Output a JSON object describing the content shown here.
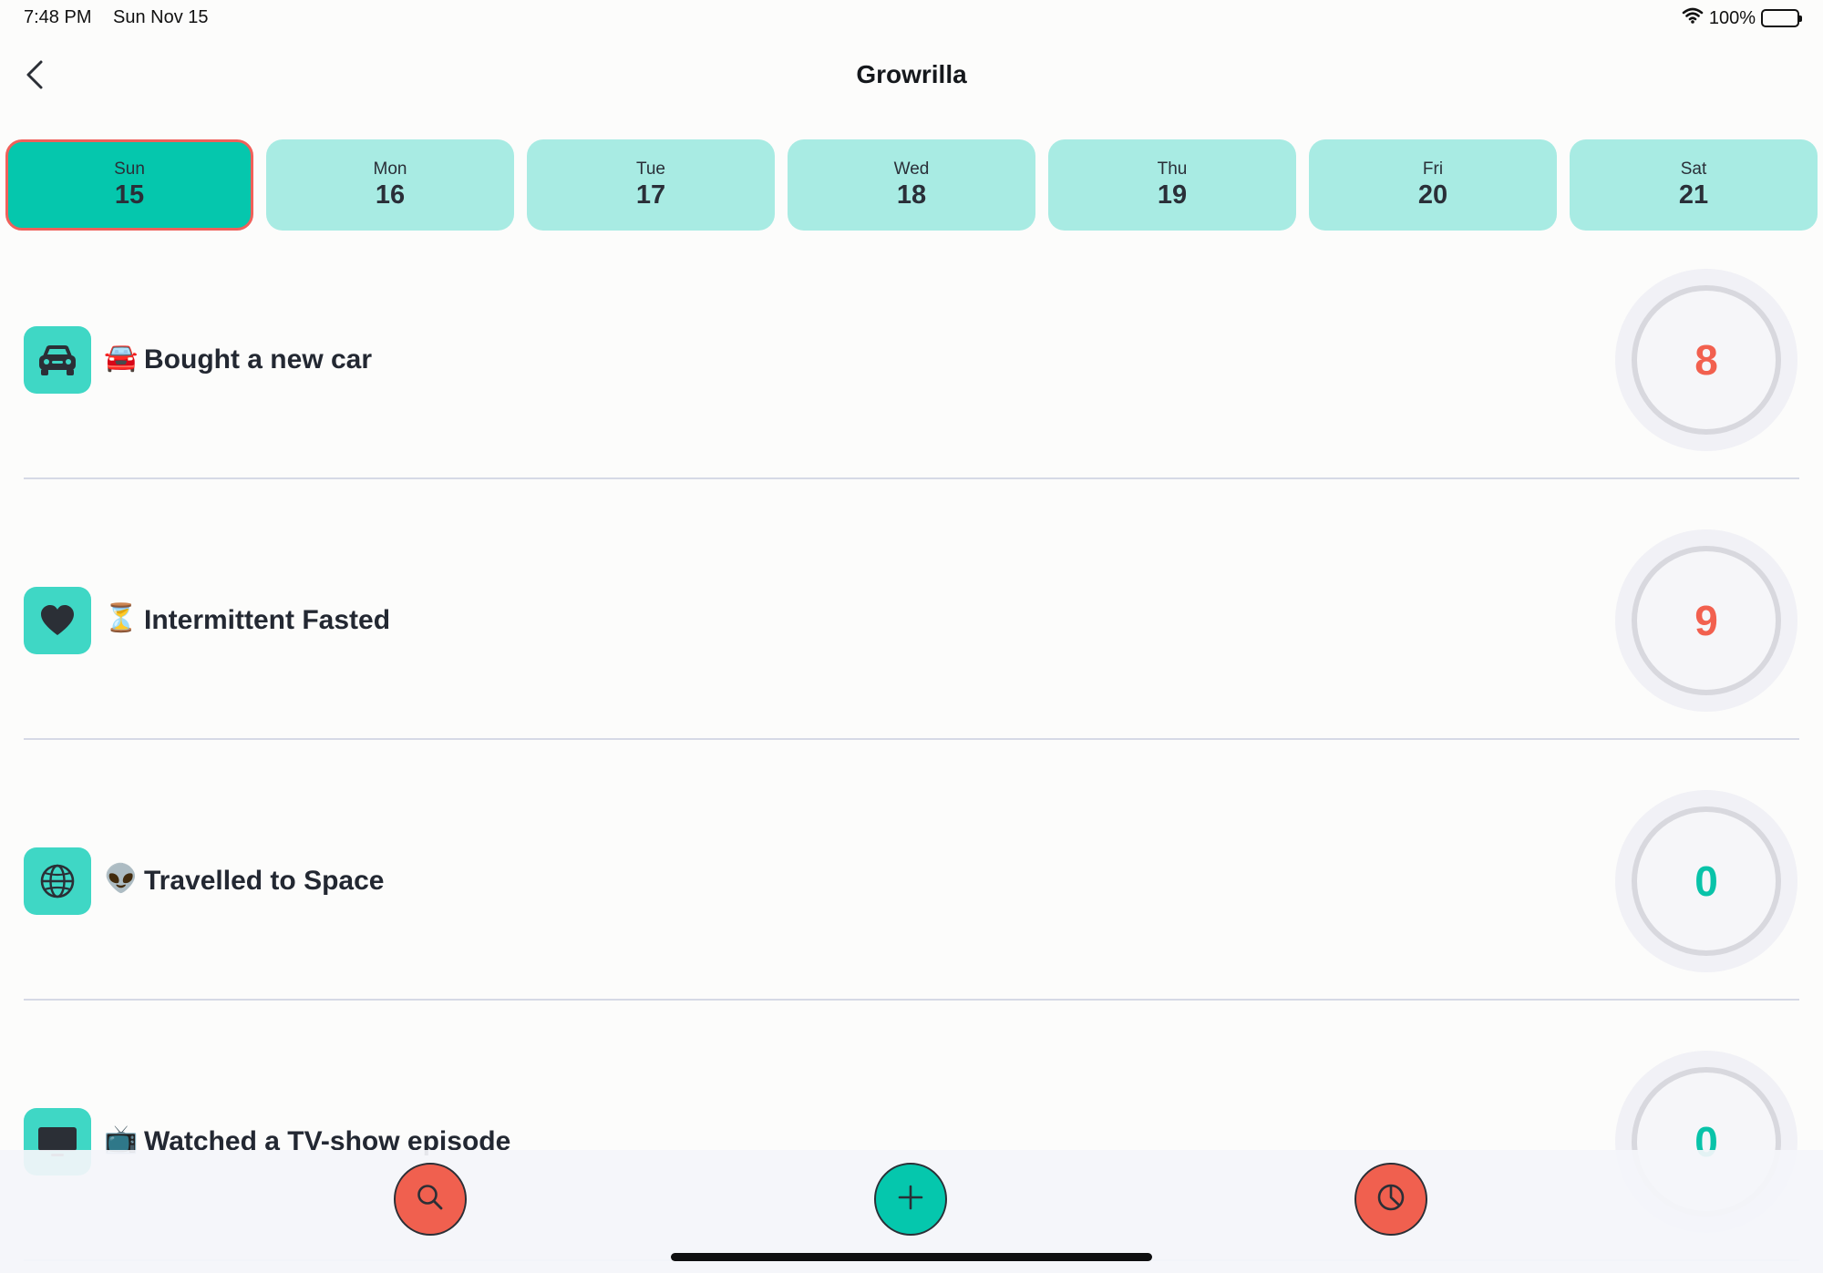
{
  "status_bar": {
    "time": "7:48 PM",
    "date": "Sun Nov 15",
    "battery": "100%",
    "icons": [
      "wifi-icon",
      "battery-icon"
    ]
  },
  "nav": {
    "title": "Growrilla",
    "back_icon": "chevron-left-icon"
  },
  "days": [
    {
      "name": "Sun",
      "num": "15",
      "selected": true
    },
    {
      "name": "Mon",
      "num": "16",
      "selected": false
    },
    {
      "name": "Tue",
      "num": "17",
      "selected": false
    },
    {
      "name": "Wed",
      "num": "18",
      "selected": false
    },
    {
      "name": "Thu",
      "num": "19",
      "selected": false
    },
    {
      "name": "Fri",
      "num": "20",
      "selected": false
    },
    {
      "name": "Sat",
      "num": "21",
      "selected": false
    }
  ],
  "habits": [
    {
      "icon": "car-icon",
      "emoji": "🚘",
      "title": "Bought a new car",
      "count": "8",
      "count_color": "#f2604f"
    },
    {
      "icon": "heart-icon",
      "emoji": "⏳",
      "title": "Intermittent Fasted",
      "count": "9",
      "count_color": "#f2604f"
    },
    {
      "icon": "globe-icon",
      "emoji": "👽",
      "title": "Travelled to Space",
      "count": "0",
      "count_color": "#09c3a9"
    },
    {
      "icon": "tv-icon",
      "emoji": "📺",
      "title": "Watched a TV-show episode",
      "count": "0",
      "count_color": "#09c3a9"
    }
  ],
  "toolbar": {
    "search_icon": "search-icon",
    "add_icon": "plus-icon",
    "stats_icon": "pie-chart-icon"
  },
  "colors": {
    "accent": "#05c7ad",
    "accent_light": "#a8ebe3",
    "icon_bg": "#3fd7c5",
    "danger": "#f0604f",
    "selected_border": "#f0605a"
  }
}
